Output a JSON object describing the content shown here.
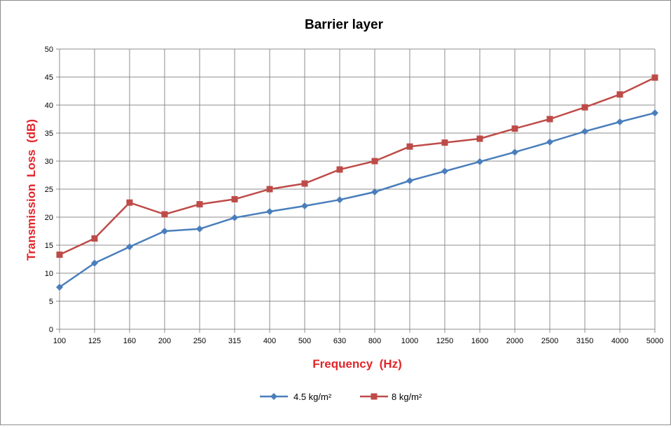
{
  "chart_data": {
    "type": "line",
    "title": "Barrier layer",
    "xlabel": "Frequency  (Hz)",
    "ylabel": "Transmission  Loss  (dB)",
    "categories": [
      "100",
      "125",
      "160",
      "200",
      "250",
      "315",
      "400",
      "500",
      "630",
      "800",
      "1000",
      "1250",
      "1600",
      "2000",
      "2500",
      "3150",
      "4000",
      "5000"
    ],
    "ylim": [
      0,
      50
    ],
    "yticks": [
      0,
      5,
      10,
      15,
      20,
      25,
      30,
      35,
      40,
      45,
      50
    ],
    "grid": true,
    "legend_position": "bottom",
    "label_color": "#e0262a",
    "series": [
      {
        "name": "4.5 kg/m²",
        "color": "#4a7ebb",
        "marker": "diamond",
        "values": [
          7.5,
          11.8,
          14.7,
          17.5,
          17.9,
          19.9,
          21.0,
          22.0,
          23.1,
          24.5,
          26.5,
          28.2,
          29.9,
          31.6,
          33.4,
          35.3,
          37.0,
          38.6
        ]
      },
      {
        "name": "8 kg/m²",
        "color": "#be4b48",
        "marker": "square",
        "values": [
          13.3,
          16.2,
          22.6,
          20.5,
          22.3,
          23.2,
          25.0,
          26.0,
          28.5,
          30.0,
          32.6,
          33.3,
          34.0,
          35.8,
          37.5,
          39.6,
          41.9,
          44.9
        ]
      }
    ]
  }
}
